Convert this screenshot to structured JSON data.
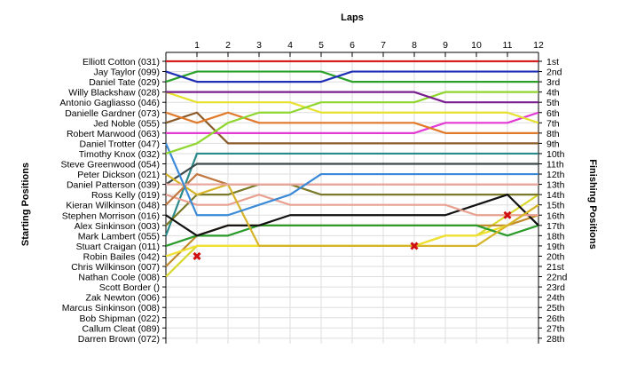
{
  "chart_data": {
    "type": "line",
    "title": "",
    "top_axis_label": "Laps",
    "left_axis_label": "Starting Positions",
    "right_axis_label": "Finishing Positions",
    "laps": [
      0,
      1,
      2,
      3,
      4,
      5,
      6,
      7,
      8,
      9,
      10,
      11,
      12
    ],
    "lap_tick_labels": [
      "1",
      "2",
      "3",
      "4",
      "5",
      "6",
      "7",
      "8",
      "9",
      "10",
      "11",
      "12"
    ],
    "finishing_labels": [
      "1st",
      "2nd",
      "3rd",
      "4th",
      "5th",
      "6th",
      "7th",
      "8th",
      "9th",
      "10th",
      "11th",
      "12th",
      "13th",
      "14th",
      "15th",
      "16th",
      "17th",
      "18th",
      "19th",
      "20th",
      "21st",
      "22nd",
      "23rd",
      "24th",
      "25th",
      "26th",
      "27th",
      "28th"
    ],
    "grid": true,
    "series": [
      {
        "name": "Elliott Cotton (031)",
        "color": "#d62020",
        "positions": [
          1,
          1,
          1,
          1,
          1,
          1,
          1,
          1,
          1,
          1,
          1,
          1,
          1
        ]
      },
      {
        "name": "Jay Taylor (099)",
        "color": "#1f2fb5",
        "positions": [
          2,
          3,
          3,
          3,
          3,
          3,
          2,
          2,
          2,
          2,
          2,
          2,
          2
        ]
      },
      {
        "name": "Daniel Tate (029)",
        "color": "#2aa22a",
        "positions": [
          3,
          2,
          2,
          2,
          2,
          2,
          3,
          3,
          3,
          3,
          3,
          3,
          3
        ]
      },
      {
        "name": "Willy Blackshaw (028)",
        "color": "#7a1f8f",
        "positions": [
          4,
          4,
          4,
          4,
          4,
          4,
          4,
          4,
          4,
          5,
          5,
          5,
          5
        ]
      },
      {
        "name": "Antonio Gagliasso (046)",
        "color": "#8fd62f",
        "positions": [
          10,
          9,
          7,
          6,
          6,
          5,
          5,
          5,
          5,
          4,
          4,
          4,
          4
        ]
      },
      {
        "name": "Danielle Gardner (073)",
        "color": "#e6e02e",
        "positions": [
          4,
          5,
          5,
          5,
          5,
          6,
          6,
          6,
          6,
          6,
          6,
          6,
          7
        ]
      },
      {
        "name": "Jed Noble (055)",
        "color": "#e07a2a",
        "positions": [
          6,
          7,
          6,
          7,
          7,
          7,
          7,
          7,
          7,
          8,
          8,
          8,
          8
        ]
      },
      {
        "name": "Robert Marwood (063)",
        "color": "#e23ad2",
        "positions": [
          8,
          8,
          8,
          8,
          8,
          8,
          8,
          8,
          8,
          7,
          7,
          7,
          6
        ]
      },
      {
        "name": "Daniel Trotter (047)",
        "color": "#8a5a28",
        "positions": [
          7,
          6,
          9,
          9,
          9,
          9,
          9,
          9,
          9,
          9,
          9,
          9,
          9
        ]
      },
      {
        "name": "Timothy Knox (032)",
        "color": "#3a8ad8",
        "positions": [
          9,
          16,
          16,
          15,
          14,
          12,
          12,
          12,
          12,
          12,
          12,
          12,
          12
        ]
      },
      {
        "name": "Steve Greenwood (054)",
        "color": "#e8a8a0",
        "positions": [
          13,
          13,
          13,
          13,
          13,
          13,
          13,
          13,
          13,
          13,
          13,
          13,
          13
        ]
      },
      {
        "name": "Peter Dickson (021)",
        "color": "#d6b42a",
        "positions": [
          12,
          14,
          13,
          19,
          19,
          19,
          19,
          19,
          19,
          19,
          19,
          17,
          15
        ]
      },
      {
        "name": "Daniel Patterson (039)",
        "color": "#3a4a4a",
        "positions": [
          13,
          11,
          11,
          11,
          11,
          11,
          11,
          11,
          11,
          11,
          11,
          11,
          11
        ]
      },
      {
        "name": "Ross Kelly (019)",
        "color": "#c07840",
        "positions": [
          15,
          12,
          13,
          13,
          13,
          13,
          13,
          13,
          13,
          13,
          13,
          13,
          13
        ]
      },
      {
        "name": "Kieran Wilkinson (048)",
        "color": "#e8a090",
        "positions": [
          14,
          15,
          15,
          14,
          15,
          15,
          15,
          15,
          15,
          15,
          16,
          16,
          16
        ]
      },
      {
        "name": "Stephen Morrison (016)",
        "color": "#111111",
        "positions": [
          16,
          18,
          17,
          17,
          16,
          16,
          16,
          16,
          16,
          16,
          15,
          14,
          17
        ]
      },
      {
        "name": "Alex Sinkinson (003)",
        "color": "#2a9a2a",
        "positions": [
          19,
          18,
          18,
          17,
          17,
          17,
          17,
          17,
          17,
          17,
          17,
          18,
          17
        ]
      },
      {
        "name": "Mark Lambert (055)",
        "color": "#7a7a2a",
        "positions": [
          17,
          14,
          14,
          13,
          13,
          14,
          14,
          14,
          14,
          14,
          14,
          14,
          14
        ]
      },
      {
        "name": "Stuart Craigan (011)",
        "color": "#f0e030",
        "positions": [
          20,
          19,
          19,
          19,
          19,
          19,
          19,
          19,
          19,
          18,
          18,
          17,
          15
        ]
      },
      {
        "name": "Robin Bailes (042)",
        "color": "#2a8a8a",
        "positions": [
          18,
          10,
          10,
          10,
          10,
          10,
          10,
          10,
          10,
          10,
          10,
          10,
          10
        ]
      },
      {
        "name": "Chris Wilkinson (007)",
        "color": "#c08a2a",
        "positions": [
          21,
          18,
          17,
          17,
          17,
          17,
          17,
          17,
          17,
          17,
          17,
          17,
          16
        ]
      },
      {
        "name": "Nathan Coole (008)",
        "color": "#d8d830",
        "positions": [
          22,
          19,
          19,
          19,
          19,
          19,
          19,
          19,
          19,
          18,
          18,
          16,
          14
        ]
      }
    ],
    "retirements": [
      {
        "lap": 1,
        "position": 20
      },
      {
        "lap": 8,
        "position": 19
      },
      {
        "lap": 11,
        "position": 16
      }
    ],
    "extra_left_labels": [
      "Scott Border ()",
      "Zak Newton (006)",
      "Marcus Sinkinson (008)",
      "Bob Shipman (022)",
      "Callum Cleat (089)",
      "Darren Brown (072)"
    ]
  }
}
